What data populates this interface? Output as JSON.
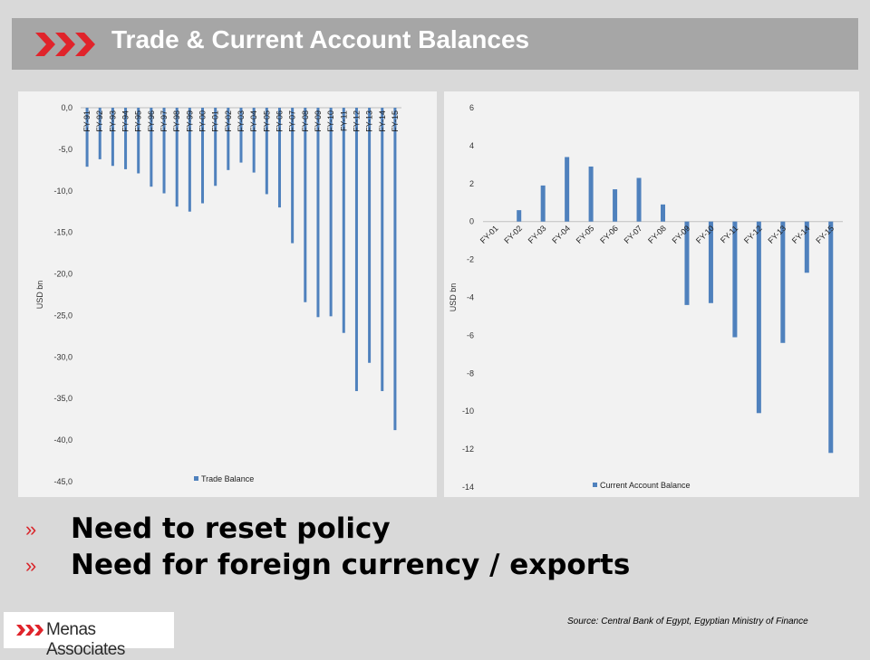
{
  "header": {
    "title": "Trade & Current Account Balances"
  },
  "colors": {
    "bar": "#4f81bd",
    "accent": "#e0242b",
    "bullet": "#d9252a"
  },
  "bullets": [
    {
      "mark": "»",
      "text": "Need to reset policy"
    },
    {
      "mark": "»",
      "text": "Need for foreign currency / exports"
    }
  ],
  "footer": {
    "source": "Source: Central Bank of Egypt, Egyptian Ministry of Finance",
    "logo_text": "Menas Associates"
  },
  "chart_data": [
    {
      "type": "bar",
      "ylabel": "USD bn",
      "ylim": [
        -45,
        0
      ],
      "yticks": [
        "0,0",
        "-5,0",
        "-10,0",
        "-15,0",
        "-20,0",
        "-25,0",
        "-30,0",
        "-35,0",
        "-40,0",
        "-45,0"
      ],
      "legend_position": "bottom",
      "categories": [
        "FY-91",
        "FY-92",
        "FY-93",
        "FY-94",
        "FY-95",
        "FY-96",
        "FY-97",
        "FY-98",
        "FY-99",
        "FY-00",
        "FY-01",
        "FY-02",
        "FY-03",
        "FY-04",
        "FY-05",
        "FY-06",
        "FY-07",
        "FY-08",
        "FY-09",
        "FY-10",
        "FY-11",
        "FY-12",
        "FY-13",
        "FY-14",
        "FY-15"
      ],
      "series": [
        {
          "name": "Trade Balance",
          "values": [
            -7.1,
            -6.2,
            -7.0,
            -7.4,
            -7.9,
            -9.5,
            -10.3,
            -11.9,
            -12.5,
            -11.5,
            -9.4,
            -7.5,
            -6.6,
            -7.8,
            -10.4,
            -12.0,
            -16.3,
            -23.4,
            -25.2,
            -25.1,
            -27.1,
            -34.1,
            -30.7,
            -34.1,
            -38.8
          ]
        }
      ]
    },
    {
      "type": "bar",
      "ylabel": "USD bn",
      "ylim": [
        -14,
        6
      ],
      "yticks": [
        "6",
        "4",
        "2",
        "0",
        "-2",
        "-4",
        "-6",
        "-8",
        "-10",
        "-12",
        "-14"
      ],
      "legend_position": "bottom",
      "categories": [
        "FY-01",
        "FY-02",
        "FY-03",
        "FY-04",
        "FY-05",
        "FY-06",
        "FY-07",
        "FY-08",
        "FY-09",
        "FY-10",
        "FY-11",
        "FY-12",
        "FY-13",
        "FY-14",
        "FY-15"
      ],
      "series": [
        {
          "name": "Current Account Balance",
          "values": [
            0.0,
            0.6,
            1.9,
            3.4,
            2.9,
            1.7,
            2.3,
            0.9,
            -4.4,
            -4.3,
            -6.1,
            -10.1,
            -6.4,
            -2.7,
            -12.2
          ]
        }
      ]
    }
  ]
}
